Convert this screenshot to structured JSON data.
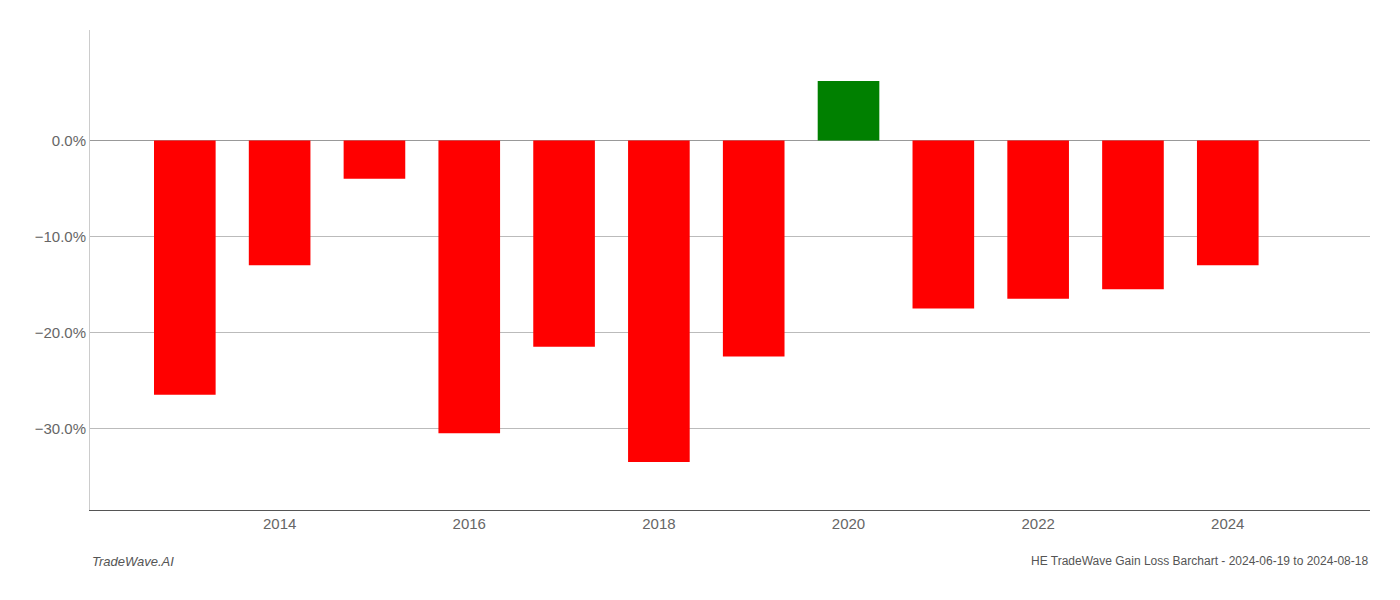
{
  "chart_data": {
    "type": "bar",
    "title": "HE TradeWave Gain Loss Barchart - 2024-06-19 to 2024-08-18",
    "annotations": [
      "TradeWave.AI"
    ],
    "x": [
      2013,
      2014,
      2015,
      2016,
      2017,
      2018,
      2019,
      2020,
      2021,
      2022,
      2023,
      2024
    ],
    "values": [
      -0.265,
      -0.13,
      -0.04,
      -0.305,
      -0.215,
      -0.335,
      -0.225,
      0.062,
      -0.175,
      -0.165,
      -0.155,
      -0.13
    ],
    "colors": [
      "#ff0000",
      "#ff0000",
      "#ff0000",
      "#ff0000",
      "#ff0000",
      "#ff0000",
      "#ff0000",
      "#008000",
      "#ff0000",
      "#ff0000",
      "#ff0000",
      "#ff0000"
    ],
    "xlim": [
      2012.0,
      2025.5
    ],
    "xticks": [
      2014,
      2016,
      2018,
      2020,
      2022,
      2024
    ],
    "ylim": [
      -0.385,
      0.115
    ],
    "yticks": [
      {
        "value": 0.0,
        "label": "0.0%"
      },
      {
        "value": -0.1,
        "label": "−10.0%"
      },
      {
        "value": -0.2,
        "label": "−20.0%"
      },
      {
        "value": -0.3,
        "label": "−30.0%"
      }
    ],
    "grid": true
  }
}
